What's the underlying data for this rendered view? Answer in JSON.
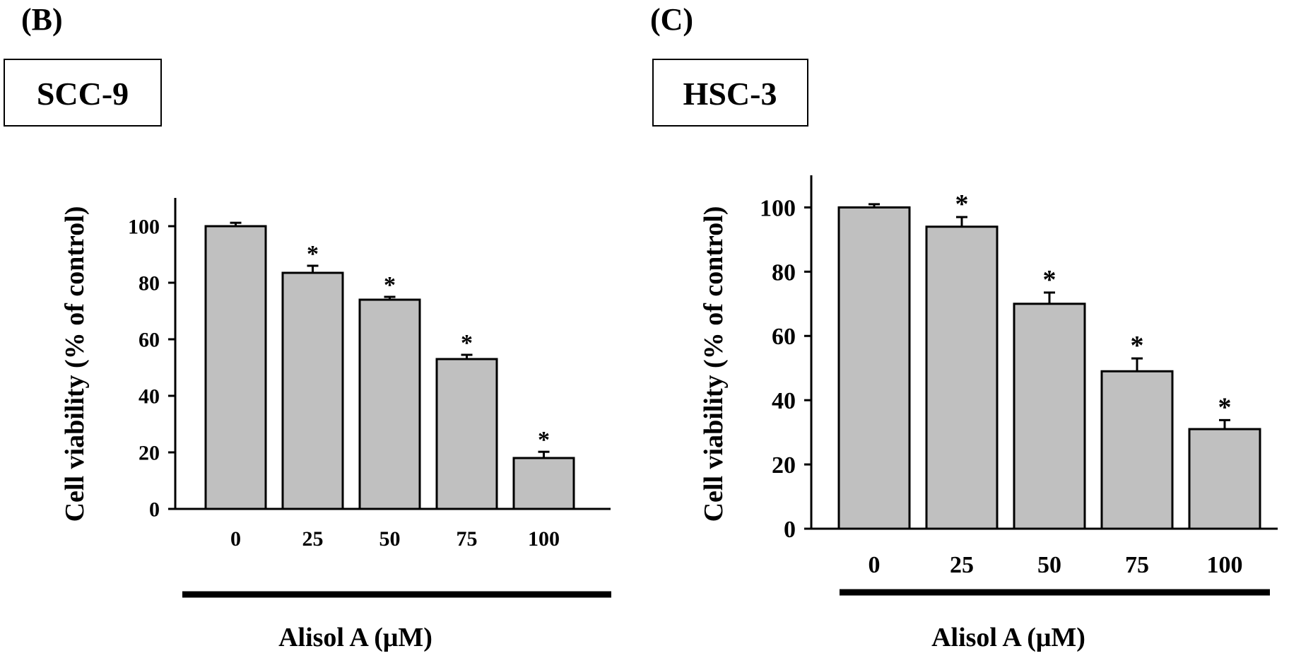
{
  "chart_data": [
    {
      "type": "bar",
      "panel_label": "(B)",
      "title": "SCC-9",
      "xlabel": "Alisol A (μM)",
      "ylabel": "Cell viability (% of control)",
      "ylim": [
        0,
        110
      ],
      "yticks": [
        "0",
        "20",
        "40",
        "60",
        "80",
        "100"
      ],
      "categories": [
        "0",
        "25",
        "50",
        "75",
        "100"
      ],
      "values": [
        100,
        83.5,
        74,
        53,
        18
      ],
      "errors": [
        1.2,
        2.5,
        1.0,
        1.5,
        2.2
      ],
      "significance": [
        "",
        "*",
        "*",
        "*",
        "*"
      ],
      "bar_color": "#c0c0c0",
      "grid": false
    },
    {
      "type": "bar",
      "panel_label": "(C)",
      "title": "HSC-3",
      "xlabel": "Alisol A (μM)",
      "ylabel": "Cell viability (% of control)",
      "ylim": [
        0,
        110
      ],
      "yticks": [
        "0",
        "20",
        "40",
        "60",
        "80",
        "100"
      ],
      "categories": [
        "0",
        "25",
        "50",
        "75",
        "100"
      ],
      "values": [
        100,
        94,
        70,
        49,
        31
      ],
      "errors": [
        1.0,
        3.0,
        3.5,
        4.0,
        2.8
      ],
      "significance": [
        "",
        "*",
        "*",
        "*",
        "*"
      ],
      "bar_color": "#c0c0c0",
      "grid": false
    }
  ]
}
